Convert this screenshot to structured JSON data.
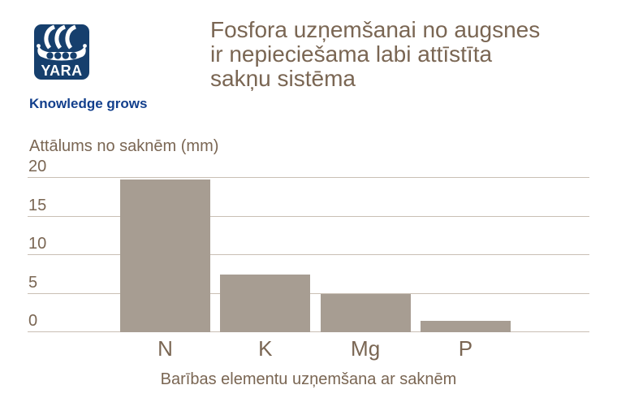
{
  "theme": {
    "brand_navy": "#163f6d",
    "tagline_blue": "#123f8c",
    "text_brown": "#7a6653",
    "background": "#ffffff"
  },
  "header": {
    "logo_text": "YARA",
    "logo_icon": "viking-ship-icon",
    "tagline": "Knowledge grows",
    "title_lines": {
      "0": "Fosfora uzņemšanai no augsnes",
      "1": "ir nepieciešama labi attīstīta",
      "2": "sakņu sistēma"
    }
  },
  "chart_data": {
    "type": "bar",
    "title": "Fosfora uzņemšanai no augsnes ir nepieciešama labi attīstīta sakņu sistēma",
    "ylabel": "Attālums no saknēm (mm)",
    "xlabel": "Barības elementu uzņemšana ar saknēm",
    "categories": [
      "N",
      "K",
      "Mg",
      "P"
    ],
    "values": [
      19.8,
      7.5,
      5,
      1.5
    ],
    "yticks": [
      0,
      5,
      10,
      15,
      20
    ],
    "ylim": [
      0,
      20
    ],
    "grid": true,
    "legend": false,
    "colors": {
      "bar": "#a79d92",
      "grid": "#c9bfb4",
      "tick_text": "#7a6653"
    }
  }
}
